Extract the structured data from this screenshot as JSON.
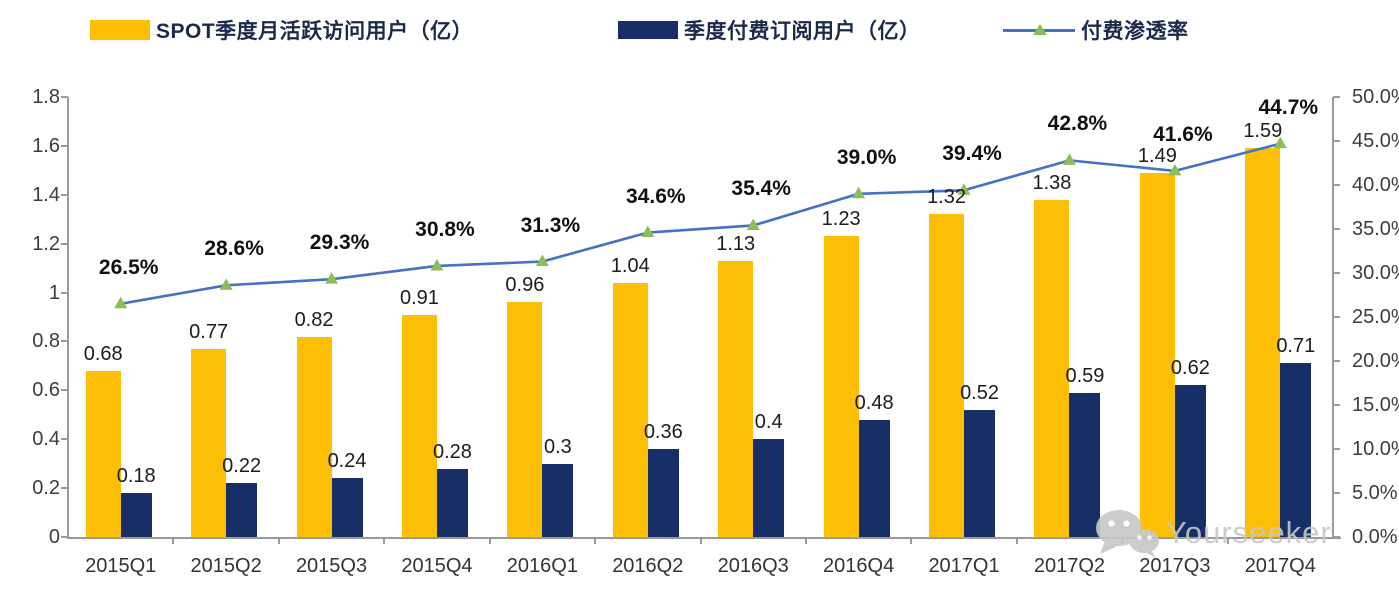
{
  "colors": {
    "bar_mau": "#FDBE06",
    "bar_subs": "#172E66",
    "line": "#4472C4",
    "marker": "#8CBE57",
    "axis": "#9A9A9A",
    "legend_text": "#1B2A4A",
    "watermark": "#C7C7C7"
  },
  "legend": {
    "items": [
      {
        "label": "SPOT季度月活跃访问用户（亿）",
        "swatch": "bar-yellow"
      },
      {
        "label": "季度付费订阅用户（亿）",
        "swatch": "bar-navy"
      },
      {
        "label": "付费渗透率",
        "swatch": "line-marker"
      }
    ]
  },
  "watermark": {
    "text": "Yourseeker",
    "icon": "wechat-icon"
  },
  "chart_data": {
    "type": "bar",
    "subtype": "grouped bars + line on secondary axis",
    "categories": [
      "2015Q1",
      "2015Q2",
      "2015Q3",
      "2015Q4",
      "2016Q1",
      "2016Q2",
      "2016Q3",
      "2016Q4",
      "2017Q1",
      "2017Q2",
      "2017Q3",
      "2017Q4"
    ],
    "series": [
      {
        "name": "SPOT季度月活跃访问用户（亿）",
        "type": "bar",
        "axis": "left",
        "color": "#FDBE06",
        "values": [
          0.68,
          0.77,
          0.82,
          0.91,
          0.96,
          1.04,
          1.13,
          1.23,
          1.32,
          1.38,
          1.49,
          1.59
        ],
        "labels": [
          "0.68",
          "0.77",
          "0.82",
          "0.91",
          "0.96",
          "1.04",
          "1.13",
          "1.23",
          "1.32",
          "1.38",
          "1.49",
          "1.59"
        ]
      },
      {
        "name": "季度付费订阅用户（亿）",
        "type": "bar",
        "axis": "left",
        "color": "#172E66",
        "values": [
          0.18,
          0.22,
          0.24,
          0.28,
          0.3,
          0.36,
          0.4,
          0.48,
          0.52,
          0.59,
          0.62,
          0.71
        ],
        "labels": [
          "0.18",
          "0.22",
          "0.24",
          "0.28",
          "0.3",
          "0.36",
          "0.4",
          "0.48",
          "0.52",
          "0.59",
          "0.62",
          "0.71"
        ]
      },
      {
        "name": "付费渗透率",
        "type": "line",
        "axis": "right",
        "color": "#4472C4",
        "marker": "triangle",
        "marker_color": "#8CBE57",
        "values": [
          26.5,
          28.6,
          29.3,
          30.8,
          31.3,
          34.6,
          35.4,
          39.0,
          39.4,
          42.8,
          41.6,
          44.7
        ],
        "labels": [
          "26.5%",
          "28.6%",
          "29.3%",
          "30.8%",
          "31.3%",
          "34.6%",
          "35.4%",
          "39.0%",
          "39.4%",
          "42.8%",
          "41.6%",
          "44.7%"
        ]
      }
    ],
    "left_axis": {
      "min": 0,
      "max": 1.8,
      "step": 0.2,
      "ticks": [
        "0",
        "0.2",
        "0.4",
        "0.6",
        "0.8",
        "1",
        "1.2",
        "1.4",
        "1.6",
        "1.8"
      ]
    },
    "right_axis": {
      "min": 0,
      "max": 50,
      "step": 5,
      "ticks": [
        "0.0%",
        "5.0%",
        "10.0%",
        "15.0%",
        "20.0%",
        "25.0%",
        "30.0%",
        "35.0%",
        "40.0%",
        "45.0%",
        "50.0%"
      ]
    },
    "grid": false,
    "legend_position": "top"
  }
}
